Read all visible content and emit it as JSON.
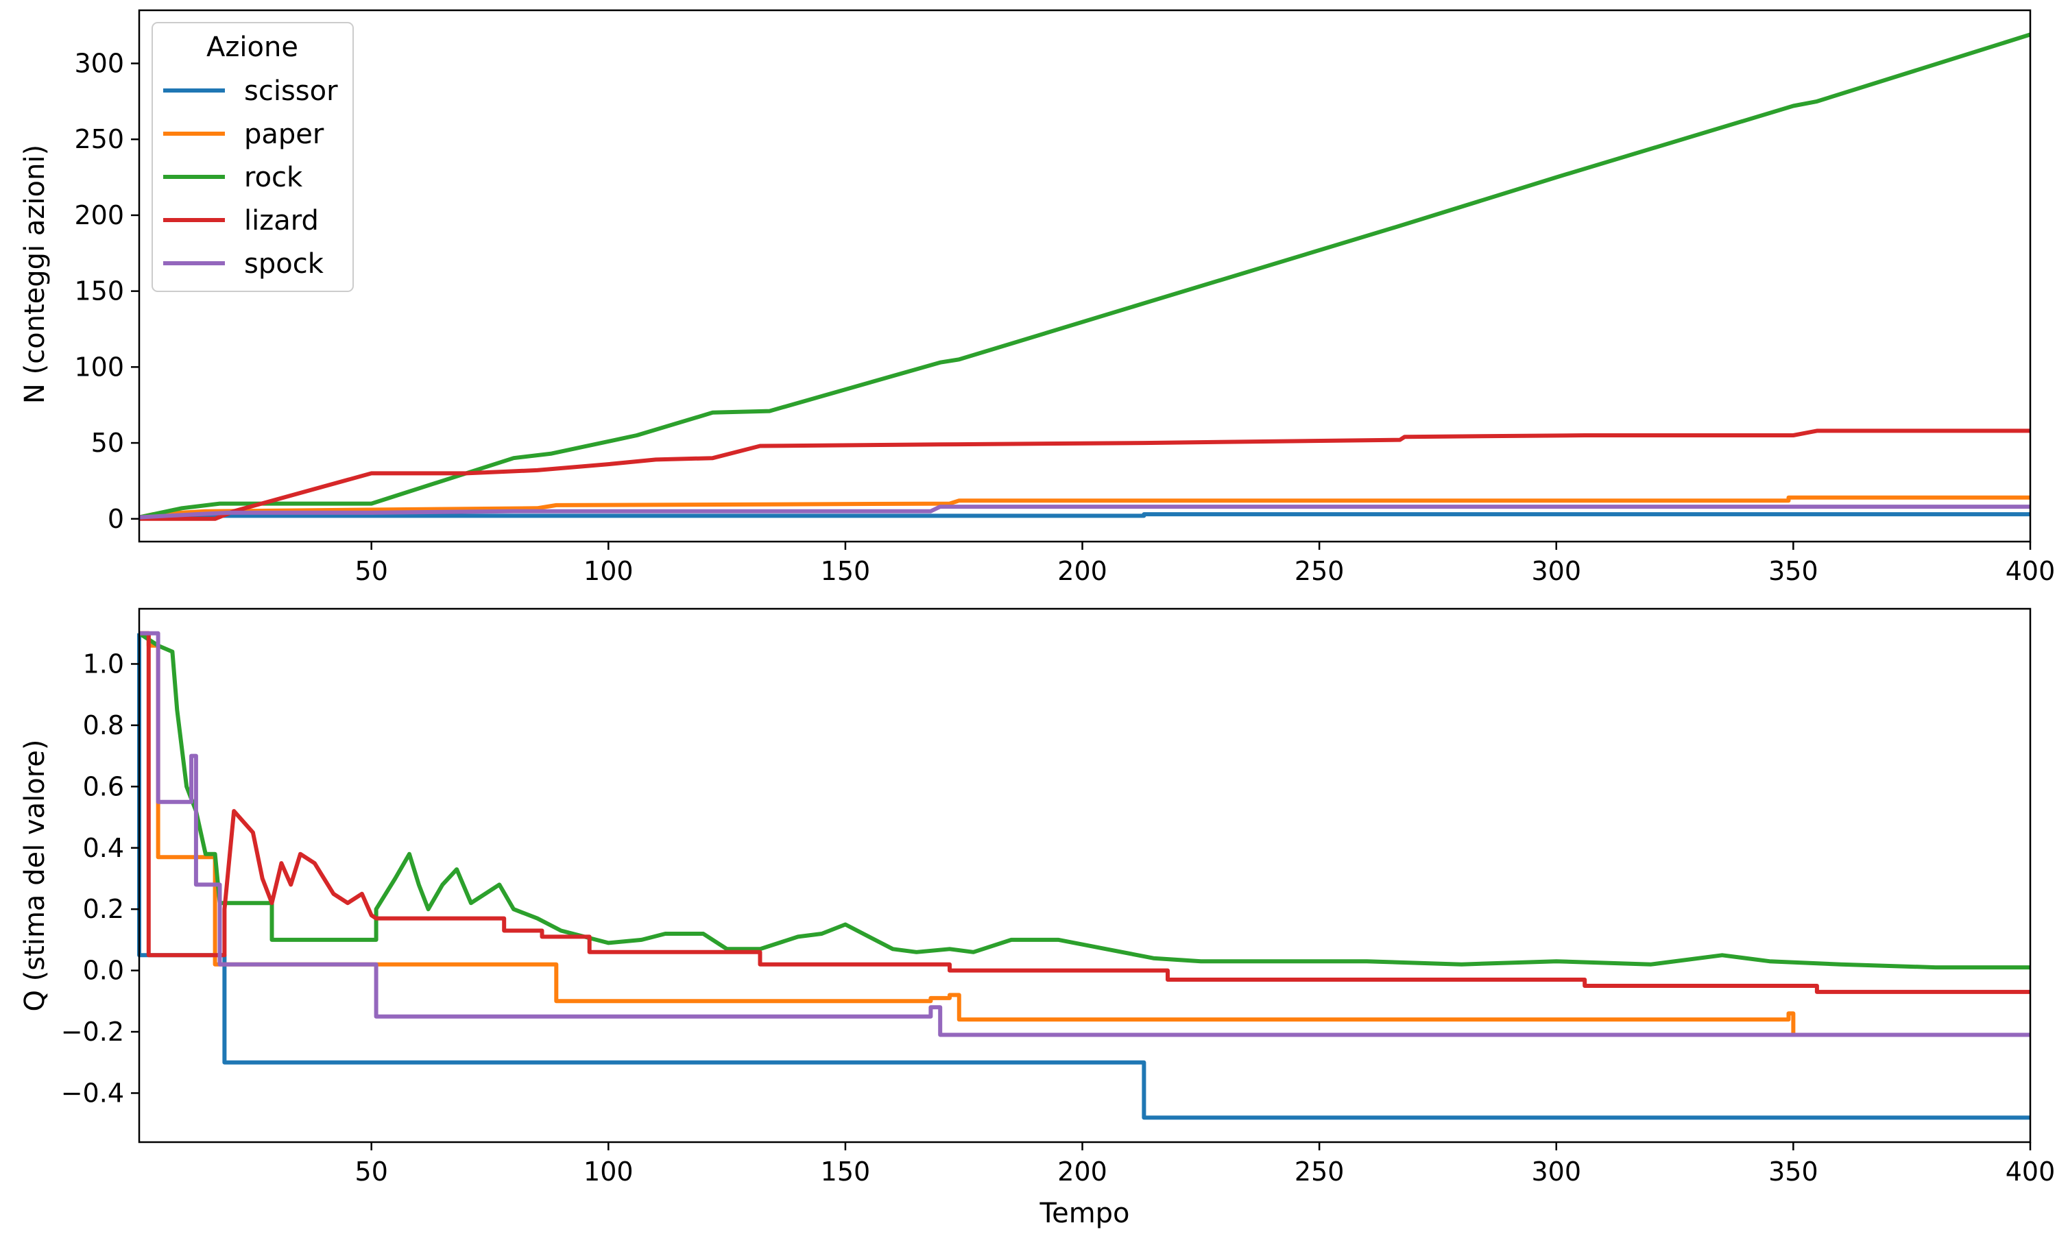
{
  "chart_data": [
    {
      "type": "line",
      "xlabel": "",
      "ylabel": "N (conteggi azioni)",
      "xlim": [
        1,
        400
      ],
      "ylim": [
        -15,
        335
      ],
      "xticks": [
        "50",
        "100",
        "150",
        "200",
        "250",
        "300",
        "350",
        "400"
      ],
      "yticks": [
        "0",
        "50",
        "100",
        "150",
        "200",
        "250",
        "300"
      ],
      "grid": false,
      "legend": {
        "title": "Azione",
        "position": "top-left"
      },
      "series": [
        {
          "name": "scissor",
          "color": "#1f77b4",
          "points": [
            [
              1,
              1
            ],
            [
              19,
              2
            ],
            [
              213,
              2
            ],
            [
              213,
              3
            ],
            [
              400,
              3
            ]
          ]
        },
        {
          "name": "paper",
          "color": "#ff7f0e",
          "points": [
            [
              1,
              1
            ],
            [
              4,
              3
            ],
            [
              15,
              5
            ],
            [
              85,
              7
            ],
            [
              89,
              9
            ],
            [
              172,
              10
            ],
            [
              174,
              12
            ],
            [
              349,
              12
            ],
            [
              349,
              14
            ],
            [
              400,
              14
            ]
          ]
        },
        {
          "name": "rock",
          "color": "#2ca02c",
          "points": [
            [
              1,
              1
            ],
            [
              10,
              7
            ],
            [
              18,
              10
            ],
            [
              50,
              10
            ],
            [
              80,
              40
            ],
            [
              88,
              43
            ],
            [
              106,
              55
            ],
            [
              122,
              70
            ],
            [
              134,
              71
            ],
            [
              170,
              103
            ],
            [
              174,
              105
            ],
            [
              213,
              142
            ],
            [
              267,
              193
            ],
            [
              300,
              225
            ],
            [
              350,
              272
            ],
            [
              355,
              275
            ],
            [
              400,
              319
            ]
          ]
        },
        {
          "name": "lizard",
          "color": "#d62728",
          "points": [
            [
              1,
              0
            ],
            [
              17,
              0
            ],
            [
              21,
              5
            ],
            [
              50,
              30
            ],
            [
              70,
              30
            ],
            [
              85,
              32
            ],
            [
              100,
              36
            ],
            [
              110,
              39
            ],
            [
              122,
              40
            ],
            [
              132,
              48
            ],
            [
              170,
              49
            ],
            [
              213,
              50
            ],
            [
              267,
              52
            ],
            [
              268,
              54
            ],
            [
              306,
              55
            ],
            [
              350,
              55
            ],
            [
              355,
              58
            ],
            [
              400,
              58
            ]
          ]
        },
        {
          "name": "spock",
          "color": "#9467bd",
          "points": [
            [
              1,
              1
            ],
            [
              13,
              3
            ],
            [
              20,
              4
            ],
            [
              50,
              4
            ],
            [
              80,
              5
            ],
            [
              168,
              5
            ],
            [
              170,
              8
            ],
            [
              400,
              8
            ]
          ]
        }
      ]
    },
    {
      "type": "line",
      "xlabel": "Tempo",
      "ylabel": "Q (stima del valore)",
      "xlim": [
        1,
        400
      ],
      "ylim": [
        -0.56,
        1.18
      ],
      "xticks": [
        "50",
        "100",
        "150",
        "200",
        "250",
        "300",
        "350",
        "400"
      ],
      "yticks": [
        "−0.4",
        "−0.2",
        "0.0",
        "0.2",
        "0.4",
        "0.6",
        "0.8",
        "1.0"
      ],
      "grid": false,
      "series": [
        {
          "name": "scissor",
          "color": "#1f77b4",
          "points": [
            [
              1,
              1.1
            ],
            [
              1,
              0.05
            ],
            [
              19,
              0.05
            ],
            [
              19,
              -0.3
            ],
            [
              213,
              -0.3
            ],
            [
              213,
              -0.48
            ],
            [
              400,
              -0.48
            ]
          ]
        },
        {
          "name": "paper",
          "color": "#ff7f0e",
          "points": [
            [
              1,
              1.1
            ],
            [
              3,
              1.1
            ],
            [
              3,
              1.06
            ],
            [
              5,
              1.06
            ],
            [
              5,
              0.37
            ],
            [
              17,
              0.37
            ],
            [
              17,
              0.02
            ],
            [
              89,
              0.02
            ],
            [
              89,
              -0.1
            ],
            [
              168,
              -0.1
            ],
            [
              168,
              -0.09
            ],
            [
              172,
              -0.09
            ],
            [
              172,
              -0.08
            ],
            [
              174,
              -0.08
            ],
            [
              174,
              -0.16
            ],
            [
              349,
              -0.16
            ],
            [
              349,
              -0.14
            ],
            [
              350,
              -0.14
            ],
            [
              350,
              -0.21
            ],
            [
              400,
              -0.21
            ]
          ]
        },
        {
          "name": "rock",
          "color": "#2ca02c",
          "points": [
            [
              1,
              1.1
            ],
            [
              5,
              1.06
            ],
            [
              8,
              1.04
            ],
            [
              9,
              0.85
            ],
            [
              11,
              0.6
            ],
            [
              13,
              0.52
            ],
            [
              15,
              0.38
            ],
            [
              17,
              0.38
            ],
            [
              18,
              0.22
            ],
            [
              29,
              0.22
            ],
            [
              29,
              0.1
            ],
            [
              51,
              0.1
            ],
            [
              51,
              0.2
            ],
            [
              55,
              0.3
            ],
            [
              58,
              0.38
            ],
            [
              60,
              0.28
            ],
            [
              62,
              0.2
            ],
            [
              65,
              0.28
            ],
            [
              68,
              0.33
            ],
            [
              71,
              0.22
            ],
            [
              74,
              0.25
            ],
            [
              77,
              0.28
            ],
            [
              80,
              0.2
            ],
            [
              85,
              0.17
            ],
            [
              90,
              0.13
            ],
            [
              100,
              0.09
            ],
            [
              107,
              0.1
            ],
            [
              112,
              0.12
            ],
            [
              120,
              0.12
            ],
            [
              125,
              0.07
            ],
            [
              132,
              0.07
            ],
            [
              140,
              0.11
            ],
            [
              145,
              0.12
            ],
            [
              150,
              0.15
            ],
            [
              155,
              0.11
            ],
            [
              160,
              0.07
            ],
            [
              165,
              0.06
            ],
            [
              172,
              0.07
            ],
            [
              177,
              0.06
            ],
            [
              185,
              0.1
            ],
            [
              195,
              0.1
            ],
            [
              205,
              0.07
            ],
            [
              215,
              0.04
            ],
            [
              225,
              0.03
            ],
            [
              240,
              0.03
            ],
            [
              260,
              0.03
            ],
            [
              280,
              0.02
            ],
            [
              300,
              0.03
            ],
            [
              320,
              0.02
            ],
            [
              335,
              0.05
            ],
            [
              345,
              0.03
            ],
            [
              360,
              0.02
            ],
            [
              380,
              0.01
            ],
            [
              400,
              0.01
            ]
          ]
        },
        {
          "name": "lizard",
          "color": "#d62728",
          "points": [
            [
              1,
              1.1
            ],
            [
              3,
              1.1
            ],
            [
              3,
              0.05
            ],
            [
              19,
              0.05
            ],
            [
              19,
              0.2
            ],
            [
              21,
              0.52
            ],
            [
              25,
              0.45
            ],
            [
              27,
              0.3
            ],
            [
              29,
              0.22
            ],
            [
              31,
              0.35
            ],
            [
              33,
              0.28
            ],
            [
              35,
              0.38
            ],
            [
              38,
              0.35
            ],
            [
              40,
              0.3
            ],
            [
              42,
              0.25
            ],
            [
              45,
              0.22
            ],
            [
              48,
              0.25
            ],
            [
              50,
              0.18
            ],
            [
              51,
              0.17
            ],
            [
              78,
              0.17
            ],
            [
              78,
              0.13
            ],
            [
              86,
              0.13
            ],
            [
              86,
              0.11
            ],
            [
              96,
              0.11
            ],
            [
              96,
              0.06
            ],
            [
              132,
              0.06
            ],
            [
              132,
              0.02
            ],
            [
              172,
              0.02
            ],
            [
              172,
              0.0
            ],
            [
              218,
              0.0
            ],
            [
              218,
              -0.03
            ],
            [
              306,
              -0.03
            ],
            [
              306,
              -0.05
            ],
            [
              355,
              -0.05
            ],
            [
              355,
              -0.07
            ],
            [
              400,
              -0.07
            ]
          ]
        },
        {
          "name": "spock",
          "color": "#9467bd",
          "points": [
            [
              1,
              1.1
            ],
            [
              5,
              1.1
            ],
            [
              5,
              0.55
            ],
            [
              12,
              0.55
            ],
            [
              12,
              0.7
            ],
            [
              13,
              0.7
            ],
            [
              13,
              0.28
            ],
            [
              18,
              0.28
            ],
            [
              18,
              0.02
            ],
            [
              51,
              0.02
            ],
            [
              51,
              -0.15
            ],
            [
              168,
              -0.15
            ],
            [
              168,
              -0.12
            ],
            [
              170,
              -0.12
            ],
            [
              170,
              -0.21
            ],
            [
              400,
              -0.21
            ]
          ]
        }
      ]
    }
  ]
}
